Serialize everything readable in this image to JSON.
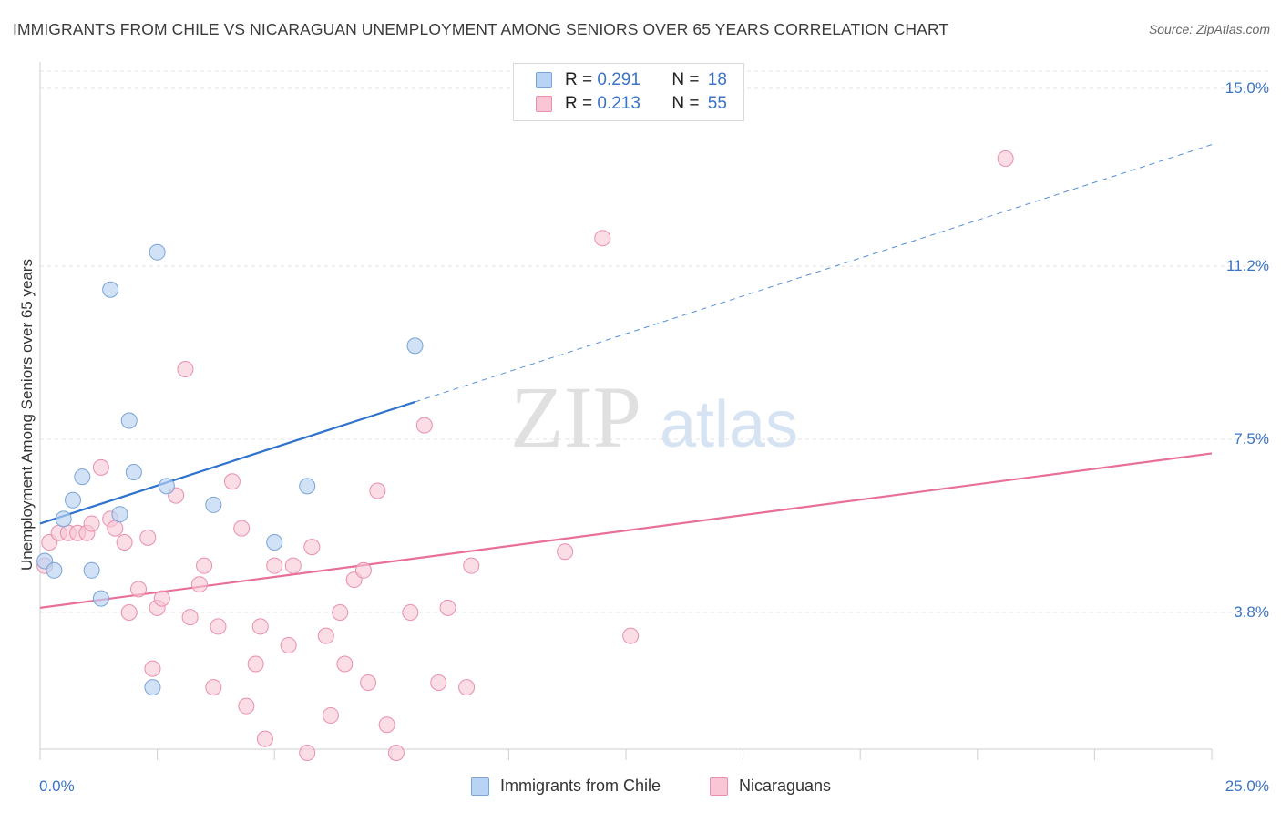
{
  "title": "IMMIGRANTS FROM CHILE VS NICARAGUAN UNEMPLOYMENT AMONG SENIORS OVER 65 YEARS CORRELATION CHART",
  "source": "Source: ZipAtlas.com",
  "watermark": {
    "zip": "ZIP",
    "atlas": "atlas"
  },
  "legend_top": [
    {
      "r_label": "R = ",
      "r_value": "0.291",
      "n_label": "N = ",
      "n_value": "18"
    },
    {
      "r_label": "R = ",
      "r_value": "0.213",
      "n_label": "N = ",
      "n_value": "55"
    }
  ],
  "legend_bottom": [
    "Immigrants from Chile",
    "Nicaraguans"
  ],
  "colors": {
    "blue_fill": "#b8d3f3",
    "blue_stroke": "#7aa3d6",
    "blue_line": "#2f73cc",
    "pink_fill": "#f8c6d5",
    "pink_stroke": "#e98fac",
    "pink_line": "#e86f98",
    "axis_label": "#3a74c7",
    "grid": "#e3e3e3"
  },
  "chart_data": {
    "type": "scatter",
    "title": "IMMIGRANTS FROM CHILE VS NICARAGUAN UNEMPLOYMENT AMONG SENIORS OVER 65 YEARS CORRELATION CHART",
    "xlabel": "",
    "ylabel": "Unemployment Among Seniors over 65 years",
    "xlim": [
      0,
      25
    ],
    "ylim": [
      0.5,
      15.8
    ],
    "x_tick_labels": [
      "0.0%",
      "25.0%"
    ],
    "y_ticks": [
      3.8,
      7.5,
      11.2,
      15.0
    ],
    "y_tick_labels": [
      "3.8%",
      "7.5%",
      "11.2%",
      "15.0%"
    ],
    "grid": true,
    "legend_position": "top-center",
    "series": [
      {
        "name": "Immigrants from Chile",
        "R": 0.291,
        "N": 18,
        "points": [
          [
            0.1,
            4.9
          ],
          [
            0.3,
            4.7
          ],
          [
            0.5,
            5.8
          ],
          [
            0.7,
            6.2
          ],
          [
            0.9,
            6.7
          ],
          [
            1.1,
            4.7
          ],
          [
            1.3,
            4.1
          ],
          [
            1.5,
            10.7
          ],
          [
            1.7,
            5.9
          ],
          [
            1.9,
            7.9
          ],
          [
            2.0,
            6.8
          ],
          [
            2.4,
            2.2
          ],
          [
            2.5,
            11.5
          ],
          [
            2.7,
            6.5
          ],
          [
            3.7,
            6.1
          ],
          [
            5.0,
            5.3
          ],
          [
            5.7,
            6.5
          ],
          [
            8.0,
            9.5
          ]
        ],
        "trend": {
          "x": [
            0,
            8.0
          ],
          "y": [
            5.7,
            8.3
          ]
        },
        "trend_extended": {
          "x": [
            8.0,
            25
          ],
          "y": [
            8.3,
            13.8
          ]
        }
      },
      {
        "name": "Nicaraguans",
        "R": 0.213,
        "N": 55,
        "points": [
          [
            0.1,
            4.8
          ],
          [
            0.2,
            5.3
          ],
          [
            0.4,
            5.5
          ],
          [
            0.6,
            5.5
          ],
          [
            0.8,
            5.5
          ],
          [
            1.0,
            5.5
          ],
          [
            1.1,
            5.7
          ],
          [
            1.3,
            6.9
          ],
          [
            1.5,
            5.8
          ],
          [
            1.6,
            5.6
          ],
          [
            1.8,
            5.3
          ],
          [
            1.9,
            3.8
          ],
          [
            2.1,
            4.3
          ],
          [
            2.3,
            5.4
          ],
          [
            2.4,
            2.6
          ],
          [
            2.5,
            3.9
          ],
          [
            2.6,
            4.1
          ],
          [
            2.9,
            6.3
          ],
          [
            3.1,
            9.0
          ],
          [
            3.2,
            3.7
          ],
          [
            3.4,
            4.4
          ],
          [
            3.5,
            4.8
          ],
          [
            3.7,
            2.2
          ],
          [
            3.8,
            3.5
          ],
          [
            4.1,
            6.6
          ],
          [
            4.3,
            5.6
          ],
          [
            4.4,
            1.8
          ],
          [
            4.6,
            2.7
          ],
          [
            4.7,
            3.5
          ],
          [
            4.8,
            1.1
          ],
          [
            5.0,
            4.8
          ],
          [
            5.3,
            3.1
          ],
          [
            5.4,
            4.8
          ],
          [
            5.7,
            0.8
          ],
          [
            5.8,
            5.2
          ],
          [
            6.1,
            3.3
          ],
          [
            6.2,
            1.6
          ],
          [
            6.4,
            3.8
          ],
          [
            6.5,
            2.7
          ],
          [
            6.7,
            4.5
          ],
          [
            6.9,
            4.7
          ],
          [
            7.0,
            2.3
          ],
          [
            7.2,
            6.4
          ],
          [
            7.4,
            1.4
          ],
          [
            7.6,
            0.8
          ],
          [
            7.9,
            3.8
          ],
          [
            8.2,
            7.8
          ],
          [
            8.5,
            2.3
          ],
          [
            8.7,
            3.9
          ],
          [
            9.1,
            2.2
          ],
          [
            9.2,
            4.8
          ],
          [
            11.2,
            5.1
          ],
          [
            12.0,
            11.8
          ],
          [
            12.6,
            3.3
          ],
          [
            20.6,
            13.5
          ]
        ],
        "trend": {
          "x": [
            0,
            25
          ],
          "y": [
            3.9,
            7.2
          ]
        }
      }
    ]
  }
}
